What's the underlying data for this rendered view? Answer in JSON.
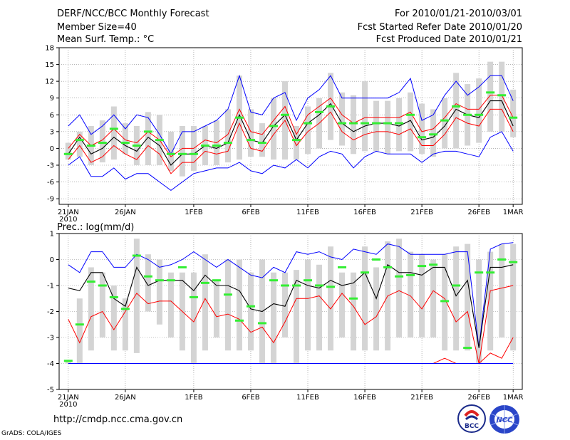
{
  "header": {
    "title": "DERF/NCC/BCC Monthly Forecast",
    "member": "Member Size=40",
    "variable": "Mean Surf. Temp.: °C",
    "period": "For 2010/01/21-2010/03/01",
    "started": "Fcst Started Refer Date 2010/01/20",
    "produced": "Fcst Produced Date 2010/01/21"
  },
  "footer": {
    "url": "http://cmdp.ncc.cma.gov.cn",
    "credit": "GrADS: COLA/IGES"
  },
  "logos": {
    "bcc": "BCC",
    "ncc": "NCC"
  },
  "x_ticks": [
    {
      "day": 0,
      "label": "21JAN",
      "sub": "2010"
    },
    {
      "day": 5,
      "label": "26JAN",
      "sub": ""
    },
    {
      "day": 11,
      "label": "1FEB",
      "sub": ""
    },
    {
      "day": 16,
      "label": "6FEB",
      "sub": ""
    },
    {
      "day": 21,
      "label": "11FEB",
      "sub": ""
    },
    {
      "day": 26,
      "label": "16FEB",
      "sub": ""
    },
    {
      "day": 31,
      "label": "21FEB",
      "sub": ""
    },
    {
      "day": 36,
      "label": "26FEB",
      "sub": ""
    },
    {
      "day": 39,
      "label": "1MAR",
      "sub": ""
    }
  ],
  "colors": {
    "max": "#0000ff",
    "min": "#0000ff",
    "mean": "#000000",
    "spread": "#ff0000",
    "marker": "#33ee33",
    "box": "#d4d4d4"
  },
  "chart_data": [
    {
      "type": "line",
      "title": "Mean Surf. Temp.: °C",
      "ylim": [
        -10,
        18
      ],
      "yticks": [
        -9,
        -6,
        -3,
        0,
        3,
        6,
        9,
        12,
        15,
        18
      ],
      "x": [
        0,
        1,
        2,
        3,
        4,
        5,
        6,
        7,
        8,
        9,
        10,
        11,
        12,
        13,
        14,
        15,
        16,
        17,
        18,
        19,
        20,
        21,
        22,
        23,
        24,
        25,
        26,
        27,
        28,
        29,
        30,
        31,
        32,
        33,
        34,
        35,
        36,
        37,
        38,
        39
      ],
      "box_low": [
        -2,
        -1.5,
        -3,
        -2.5,
        -2,
        -1,
        -3,
        -3,
        -3,
        -4,
        -5,
        -4,
        -3,
        -3,
        -2.5,
        -2,
        -1.5,
        -1.5,
        -2,
        -2,
        -2,
        -1,
        0,
        1.5,
        0.5,
        -1,
        -0.5,
        -0.5,
        -1,
        -0.5,
        -0.5,
        -1,
        -1.5,
        0,
        0,
        0.5,
        1,
        3,
        3,
        2
      ],
      "box_high": [
        1,
        3,
        4,
        5,
        7.5,
        4.5,
        4,
        6.5,
        6,
        3,
        4,
        4,
        4,
        5,
        7,
        13,
        7,
        4.5,
        9,
        12,
        4,
        7.5,
        9,
        13.5,
        10,
        9.5,
        12,
        8.5,
        8.5,
        9,
        10,
        8,
        7,
        9,
        13.5,
        11.5,
        12.5,
        15.5,
        15.5,
        10.5
      ],
      "series": [
        {
          "name": "max",
          "values": [
            4,
            6,
            2.5,
            4,
            6,
            3.5,
            6,
            5.5,
            2.5,
            -1,
            3,
            3,
            4,
            5,
            7,
            13,
            6.5,
            6,
            9,
            10,
            5,
            9,
            10.5,
            13,
            9,
            9,
            9,
            9,
            9,
            10,
            12.5,
            5,
            6,
            9.5,
            12,
            9.5,
            11,
            13,
            13,
            8.5
          ]
        },
        {
          "name": "min",
          "values": [
            -3,
            -1.5,
            -5,
            -5,
            -3.5,
            -5.5,
            -4.5,
            -4.5,
            -6,
            -7.5,
            -6,
            -4.5,
            -4,
            -3.5,
            -3.5,
            -2.5,
            -4,
            -4.5,
            -3,
            -3.5,
            -2,
            -3.5,
            -1.5,
            -0.5,
            -1,
            -3.5,
            -1.5,
            -0.5,
            -1,
            -1,
            -1,
            -2.5,
            -1,
            -0.5,
            -0.5,
            -1,
            -1.5,
            2,
            3,
            -0.5
          ]
        },
        {
          "name": "mean",
          "values": [
            -1,
            2,
            -1,
            0,
            2,
            0.5,
            -0.5,
            2,
            0.5,
            -3,
            -1,
            -1,
            0.5,
            0,
            1,
            6,
            1.5,
            1,
            4,
            6,
            1.5,
            4.5,
            6,
            8,
            4.5,
            3,
            4,
            4.5,
            4.5,
            4,
            5,
            1.5,
            2,
            4,
            7,
            6,
            5.5,
            8.5,
            8.5,
            4
          ]
        },
        {
          "name": "upper",
          "values": [
            0,
            2.5,
            0.5,
            1.5,
            3.5,
            1.5,
            1,
            3,
            1.5,
            -1.5,
            0,
            0,
            1.5,
            1,
            2.5,
            7,
            3,
            2.5,
            5,
            7.5,
            2.5,
            6,
            7.5,
            9,
            6,
            4.5,
            5.5,
            5.5,
            5.5,
            5.5,
            6.5,
            3,
            3.5,
            5.5,
            8,
            7,
            7,
            9.5,
            9.5,
            5.5
          ]
        },
        {
          "name": "lower",
          "values": [
            -2,
            0.5,
            -2.5,
            -1.5,
            0.5,
            -1,
            -2,
            0.5,
            -1,
            -4.5,
            -2.5,
            -2.5,
            -0.5,
            -1,
            -0.5,
            4.5,
            0,
            -0.5,
            2.5,
            5,
            0.5,
            3,
            4.5,
            6.5,
            3,
            1.5,
            2.5,
            3,
            3,
            2.5,
            3.5,
            0.5,
            0.5,
            2.5,
            5.5,
            4.5,
            4,
            7,
            7,
            3
          ]
        },
        {
          "name": "marker",
          "values": [
            -1,
            1.5,
            0.5,
            1,
            3.5,
            1,
            0.5,
            3,
            1.5,
            -1,
            -1,
            -1,
            0.5,
            0.5,
            1,
            5.5,
            1.5,
            1,
            4,
            6,
            1.5,
            4.5,
            6.5,
            7.5,
            4.5,
            4.5,
            4.5,
            4.5,
            4.5,
            4.5,
            6,
            2,
            2.5,
            5,
            7.5,
            6,
            6,
            10,
            9.5,
            5.5
          ]
        }
      ]
    },
    {
      "type": "line",
      "title": "Prec.: log(mm/d)",
      "ylim": [
        -5,
        1
      ],
      "yticks": [
        -5,
        -4,
        -3,
        -2,
        -1,
        0,
        1
      ],
      "x": [
        0,
        1,
        2,
        3,
        4,
        5,
        6,
        7,
        8,
        9,
        10,
        11,
        12,
        13,
        14,
        15,
        16,
        17,
        18,
        19,
        20,
        21,
        22,
        23,
        24,
        25,
        26,
        27,
        28,
        29,
        30,
        31,
        32,
        33,
        34,
        35,
        36,
        37,
        38,
        39
      ],
      "box_low": [
        -4,
        -4,
        -3.5,
        -3,
        -3.5,
        -3.5,
        -3.6,
        -2,
        -2.5,
        -3,
        -3.5,
        -4,
        -3.5,
        -3,
        -3.5,
        -3.5,
        -3.5,
        -4,
        -4,
        -3,
        -4,
        -3.5,
        -3.5,
        -3.5,
        -3,
        -3.5,
        -3.5,
        -3.5,
        -3.5,
        -3,
        -3,
        -3,
        -3,
        -3.5,
        -3.5,
        -3.5,
        -4,
        -3.5,
        -3,
        -3.5
      ],
      "box_high": [
        -3.9,
        -1.5,
        -0.3,
        -0.5,
        -1,
        -1.5,
        0.8,
        0.2,
        0,
        -0.5,
        -0.5,
        -0.5,
        0.2,
        -0.8,
        0,
        0,
        -0.5,
        0,
        -0.5,
        -0.5,
        -0.4,
        0,
        -0.2,
        0.5,
        -0.5,
        -0.5,
        0.5,
        -0.3,
        0.7,
        0.8,
        0.3,
        0.2,
        0,
        0.2,
        0.5,
        0.6,
        0,
        0.3,
        0.6,
        0.6
      ],
      "series": [
        {
          "name": "max",
          "values": [
            -0.2,
            -0.5,
            0.3,
            0.3,
            -0.3,
            -0.3,
            0.2,
            0,
            -0.3,
            -0.2,
            0,
            0.3,
            0,
            -0.3,
            0,
            -0.3,
            -0.6,
            -0.7,
            -0.3,
            -0.5,
            0.3,
            0.2,
            0.3,
            0.1,
            0,
            0.4,
            0.3,
            0.2,
            0.6,
            0.5,
            0.2,
            0.2,
            0.2,
            0.2,
            0.3,
            0.3,
            -3.4,
            0.4,
            0.6,
            0.65
          ]
        },
        {
          "name": "mean",
          "values": [
            -1.1,
            -1.2,
            -0.5,
            -0.5,
            -1.5,
            -1.8,
            -0.3,
            -1,
            -0.8,
            -0.8,
            -0.8,
            -1.2,
            -0.6,
            -1,
            -1,
            -1.2,
            -1.9,
            -2,
            -1.7,
            -1.8,
            -0.8,
            -1,
            -1.1,
            -0.8,
            -1,
            -0.9,
            -0.5,
            -1.5,
            -0.2,
            -0.5,
            -0.5,
            -0.6,
            -0.3,
            -0.3,
            -1.4,
            -0.8,
            -3.4,
            -0.3,
            -0.3,
            -0.2
          ]
        },
        {
          "name": "upper",
          "values": [
            -2.3,
            -3.2,
            -2.2,
            -2,
            -2.7,
            -2,
            -1.3,
            -1.7,
            -1.6,
            -1.6,
            -2,
            -2.4,
            -1.5,
            -2.2,
            -2.1,
            -2.3,
            -2.8,
            -2.6,
            -3.2,
            -2.4,
            -1.5,
            -1.5,
            -1.4,
            -1.9,
            -1.3,
            -1.8,
            -2.5,
            -2.2,
            -1.4,
            -1.2,
            -1.4,
            -1.9,
            -1.2,
            -1.5,
            -2.4,
            -2,
            -4,
            -1.2,
            -1.1,
            -1
          ]
        },
        {
          "name": "lower",
          "values": [
            -4,
            -4,
            -4,
            -4,
            -4,
            -4,
            -4,
            -4,
            -4,
            -4,
            -4,
            -4,
            -4,
            -4,
            -4,
            -4,
            -4,
            -4,
            -4,
            -4,
            -4,
            -4,
            -4,
            -4,
            -4,
            -4,
            -4,
            -4,
            -4,
            -4,
            -4,
            -4,
            -4,
            -3.8,
            -4,
            -4,
            -4,
            -3.6,
            -3.8,
            -3
          ]
        },
        {
          "name": "min",
          "values": [
            -4,
            -4,
            -4,
            -4,
            -4,
            -4,
            -4,
            -4,
            -4,
            -4,
            -4,
            -4,
            -4,
            -4,
            -4,
            -4,
            -4,
            -4,
            -4,
            -4,
            -4,
            -4,
            -4,
            -4,
            -4,
            -4,
            -4,
            -4,
            -4,
            -4,
            -4,
            -4,
            -4,
            -4,
            -4,
            -4,
            -4,
            -4,
            -4,
            -4
          ]
        },
        {
          "name": "marker",
          "values": [
            -3.9,
            -2.5,
            -0.85,
            -1,
            -1.45,
            -1.9,
            0.15,
            -0.65,
            -0.8,
            -0.8,
            -0.3,
            -1.45,
            -0.9,
            -0.8,
            -1.35,
            -2.35,
            -1.8,
            -2.45,
            -0.8,
            -1,
            -1,
            -0.8,
            -1,
            -1.05,
            -0.3,
            -1.5,
            -0.5,
            0,
            -0.3,
            -0.65,
            -0.6,
            -0.25,
            -0.2,
            -1.6,
            -1,
            -3.4,
            -0.5,
            -0.5,
            0,
            -0.1
          ]
        }
      ]
    }
  ]
}
